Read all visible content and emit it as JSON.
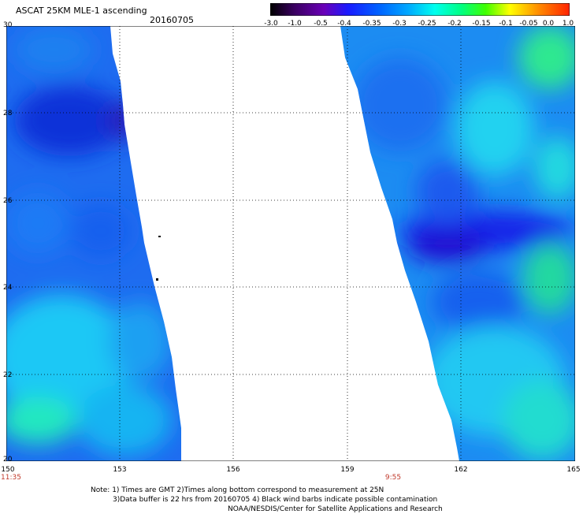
{
  "header": {
    "title": "ASCAT 25KM MLE-1 ascending",
    "date": "20160705"
  },
  "colorbar": {
    "labels": [
      "-3.0",
      "-1.0",
      "-0.5",
      "-0.4",
      "-0.35",
      "-0.3",
      "-0.25",
      "-0.2",
      "-0.15",
      "-0.1",
      "-0.05",
      "0.0",
      "1.0"
    ],
    "colors": [
      "#000000",
      "#3a0060",
      "#6a00b8",
      "#1a1aff",
      "#0060ff",
      "#00a8ff",
      "#00ffee",
      "#00ff80",
      "#40ff00",
      "#ffff00",
      "#ff8800",
      "#ff2200"
    ]
  },
  "axes": {
    "x_ticks": [
      "150",
      "153",
      "156",
      "159",
      "162",
      "165"
    ],
    "y_ticks": [
      "30",
      "28",
      "26",
      "24",
      "22",
      "20"
    ]
  },
  "swath_times": [
    {
      "label": "11:35"
    },
    {
      "label": "9:55"
    }
  ],
  "notes": [
    "Note: 1) Times are GMT 2)Times along bottom correspond to measurement at 25N",
    "3)Data buffer is 22 hrs from 20160705 4) Black wind barbs indicate possible contamination",
    "NOAA/NESDIS/Center for Satellite Applications and Research"
  ]
}
